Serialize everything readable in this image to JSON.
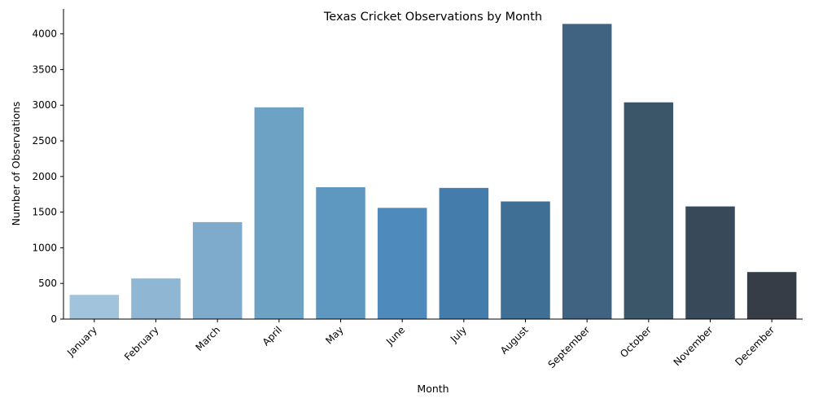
{
  "chart_data": {
    "type": "bar",
    "title": "Texas Cricket Observations by Month",
    "xlabel": "Month",
    "ylabel": "Number of Observations",
    "categories": [
      "January",
      "February",
      "March",
      "April",
      "May",
      "June",
      "July",
      "August",
      "September",
      "October",
      "November",
      "December"
    ],
    "values": [
      340,
      570,
      1360,
      2970,
      1850,
      1560,
      1840,
      1650,
      4140,
      3040,
      1580,
      660
    ],
    "ylim": [
      0,
      4350
    ],
    "yticks": [
      0,
      500,
      1000,
      1500,
      2000,
      2500,
      3000,
      3500,
      4000
    ],
    "ytick_labels": [
      "0",
      "500",
      "1000",
      "1500",
      "2000",
      "2500",
      "3000",
      "3500",
      "4000"
    ],
    "grid": false,
    "colors": [
      "#a1c4dc",
      "#8fb6d2",
      "#7eaacb",
      "#6ea2c5",
      "#5e97c0",
      "#4e8abc",
      "#447cac",
      "#3f6f94",
      "#3f6381",
      "#3c5669",
      "#384a5a",
      "#363d47"
    ]
  }
}
